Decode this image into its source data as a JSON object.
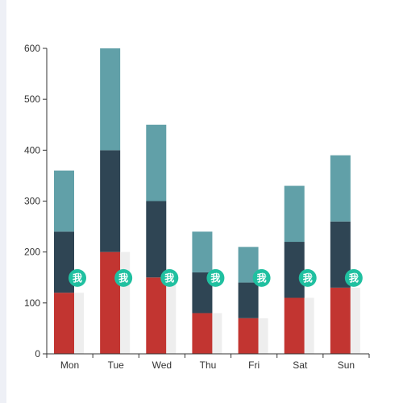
{
  "chart_data": {
    "type": "bar",
    "stacked": true,
    "categories": [
      "Mon",
      "Tue",
      "Wed",
      "Thu",
      "Fri",
      "Sat",
      "Sun"
    ],
    "ylim": [
      0,
      600
    ],
    "yticks": [
      0,
      100,
      200,
      300,
      400,
      500,
      600
    ],
    "grid": false,
    "series": [
      {
        "values": [
          120,
          200,
          150,
          80,
          70,
          110,
          130
        ],
        "color": "#c23531"
      },
      {
        "values": [
          120,
          200,
          150,
          80,
          70,
          110,
          130
        ],
        "color": "#2f4554"
      },
      {
        "values": [
          120,
          200,
          150,
          80,
          70,
          110,
          130
        ],
        "color": "#61a0a8"
      }
    ],
    "background_bar": {
      "values": [
        120,
        200,
        150,
        80,
        70,
        110,
        130
      ],
      "color": "#eeeeee"
    },
    "markers": {
      "label": "我",
      "color": "#20c0a0",
      "values": [
        130,
        130,
        130,
        130,
        130,
        130,
        130
      ]
    }
  }
}
